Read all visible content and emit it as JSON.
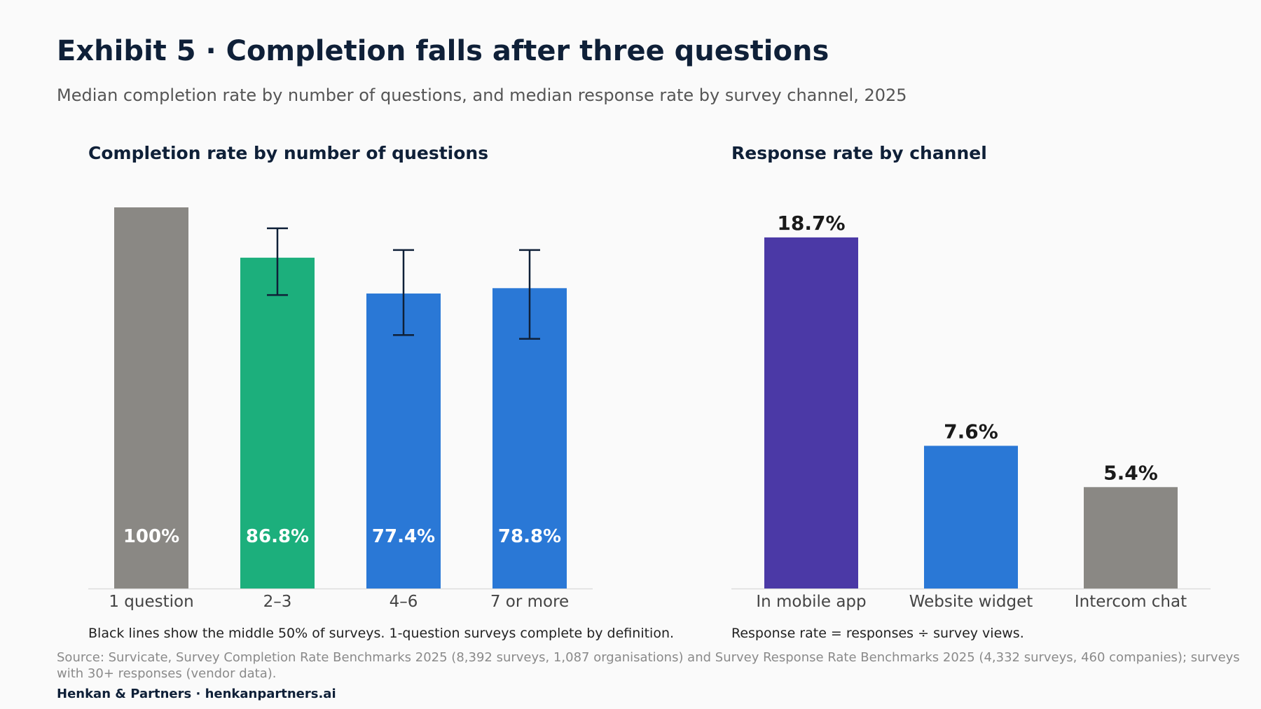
{
  "header": {
    "title": "Exhibit 5 · Completion falls after three questions",
    "subtitle": "Median completion rate by number of questions, and median response rate by survey channel, 2025"
  },
  "colors": {
    "grey": "#8a8884",
    "green": "#1caf7c",
    "blue": "#2a78d6",
    "purple": "#4b39a6",
    "whisker": "#0f2038"
  },
  "chart_data": [
    {
      "type": "bar",
      "title": "Completion rate by number of questions",
      "categories": [
        "1 question",
        "2–3",
        "4–6",
        "7 or more"
      ],
      "values": [
        100,
        86.8,
        77.4,
        78.8
      ],
      "value_labels": [
        "100%",
        "86.8%",
        "77.4%",
        "78.8%"
      ],
      "colors": [
        "#8a8884",
        "#1caf7c",
        "#2a78d6",
        "#2a78d6"
      ],
      "iqr": [
        null,
        [
          77,
          94.5
        ],
        [
          66.5,
          88.8
        ],
        [
          65.5,
          88.8
        ]
      ],
      "ylim": [
        0,
        100
      ],
      "grid": false,
      "label_position": "inside-bottom",
      "note": "Black lines show the middle 50% of surveys. 1-question surveys complete by definition."
    },
    {
      "type": "bar",
      "title": "Response rate by channel",
      "categories": [
        "In mobile app",
        "Website widget",
        "Intercom chat"
      ],
      "values": [
        18.7,
        7.6,
        5.4
      ],
      "value_labels": [
        "18.7%",
        "7.6%",
        "5.4%"
      ],
      "colors": [
        "#4b39a6",
        "#2a78d6",
        "#8a8884"
      ],
      "ylim": [
        0,
        20.3
      ],
      "grid": false,
      "label_position": "above",
      "note": "Response rate = responses ÷ survey views."
    }
  ],
  "source": "Source: Survicate, Survey Completion Rate Benchmarks 2025 (8,392 surveys, 1,087 organisations) and Survey Response Rate Benchmarks 2025 (4,332 surveys, 460 companies); surveys with 30+ responses (vendor data).",
  "footer": "Henkan & Partners · henkanpartners.ai"
}
